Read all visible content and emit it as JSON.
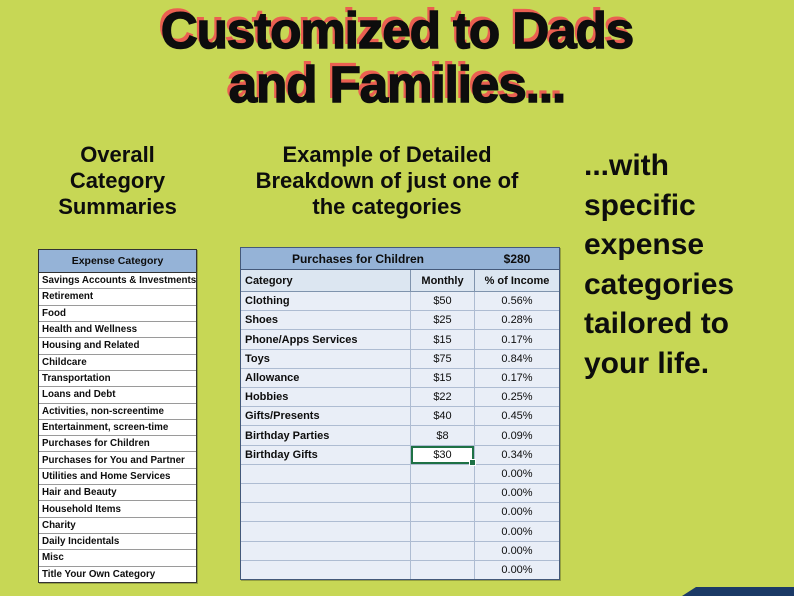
{
  "colors": {
    "background": "#c7d755",
    "title_text": "#0d0d0d",
    "title_shadow": "#ea5f51",
    "table_header_blue": "#95b3d7",
    "table_body_tint": "#e9eef7",
    "selection_green": "#1e7145",
    "corner_navy": "#1b3a66"
  },
  "title": {
    "line1": "Customized to Dads",
    "line2": "and Families..."
  },
  "left_section": {
    "heading": "Overall Category Summaries",
    "table": {
      "header": "Expense Category",
      "rows": [
        "Savings Accounts & Investments",
        "Retirement",
        "Food",
        "Health and Wellness",
        "Housing and Related",
        "Childcare",
        "Transportation",
        "Loans and Debt",
        "Activities, non-screentime",
        "Entertainment, screen-time",
        "Purchases for Children",
        "Purchases for You and Partner",
        "Utilities and Home Services",
        "Hair and Beauty",
        "Household Items",
        "Charity",
        "Daily Incidentals",
        "Misc",
        "Title Your Own Category"
      ]
    }
  },
  "middle_section": {
    "heading": "Example of Detailed Breakdown of just one of the categories",
    "table": {
      "title": "Purchases for Children",
      "total": "$280",
      "columns": [
        "Category",
        "Monthly",
        "% of Income"
      ],
      "rows": [
        {
          "category": "Clothing",
          "monthly": "$50",
          "percent": "0.56%"
        },
        {
          "category": "Shoes",
          "monthly": "$25",
          "percent": "0.28%"
        },
        {
          "category": "Phone/Apps Services",
          "monthly": "$15",
          "percent": "0.17%"
        },
        {
          "category": "Toys",
          "monthly": "$75",
          "percent": "0.84%"
        },
        {
          "category": "Allowance",
          "monthly": "$15",
          "percent": "0.17%"
        },
        {
          "category": "Hobbies",
          "monthly": "$22",
          "percent": "0.25%"
        },
        {
          "category": "Gifts/Presents",
          "monthly": "$40",
          "percent": "0.45%"
        },
        {
          "category": "Birthday Parties",
          "monthly": "$8",
          "percent": "0.09%"
        },
        {
          "category": "Birthday Gifts",
          "monthly": "$30",
          "percent": "0.34%"
        },
        {
          "category": "",
          "monthly": "",
          "percent": "0.00%"
        },
        {
          "category": "",
          "monthly": "",
          "percent": "0.00%"
        },
        {
          "category": "",
          "monthly": "",
          "percent": "0.00%"
        },
        {
          "category": "",
          "monthly": "",
          "percent": "0.00%"
        },
        {
          "category": "",
          "monthly": "",
          "percent": "0.00%"
        },
        {
          "category": "",
          "monthly": "",
          "percent": "0.00%"
        }
      ]
    }
  },
  "right_section": {
    "text": "...with specific expense categories tailored to your life."
  }
}
